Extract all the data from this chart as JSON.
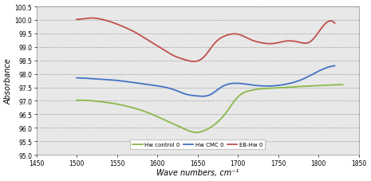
{
  "title": "",
  "xlabel": "Wave numbers, cm⁻¹",
  "ylabel": "Absorbance",
  "xlim": [
    1450,
    1850
  ],
  "ylim": [
    95,
    100.5
  ],
  "yticks": [
    95,
    95.5,
    96,
    96.5,
    97,
    97.5,
    98,
    98.5,
    99,
    99.5,
    100,
    100.5
  ],
  "xticks": [
    1450,
    1500,
    1550,
    1600,
    1650,
    1700,
    1750,
    1800,
    1850
  ],
  "bg_color": "#e8e8e8",
  "series": [
    {
      "label": "Hw control 0",
      "color": "#8ab84a",
      "x": [
        1500,
        1510,
        1520,
        1535,
        1550,
        1565,
        1580,
        1595,
        1610,
        1625,
        1640,
        1650,
        1660,
        1670,
        1685,
        1700,
        1715,
        1730,
        1750,
        1770,
        1790,
        1810,
        1830
      ],
      "y": [
        97.02,
        97.02,
        97.0,
        96.95,
        96.88,
        96.78,
        96.65,
        96.48,
        96.28,
        96.08,
        95.88,
        95.83,
        95.92,
        96.1,
        96.55,
        97.15,
        97.38,
        97.45,
        97.48,
        97.52,
        97.55,
        97.58,
        97.6
      ]
    },
    {
      "label": "Hw CMC 0",
      "color": "#4472c4",
      "x": [
        1500,
        1515,
        1530,
        1545,
        1560,
        1575,
        1590,
        1605,
        1620,
        1635,
        1650,
        1665,
        1680,
        1700,
        1720,
        1740,
        1760,
        1780,
        1800,
        1820
      ],
      "y": [
        97.85,
        97.83,
        97.8,
        97.77,
        97.72,
        97.66,
        97.6,
        97.53,
        97.42,
        97.25,
        97.18,
        97.22,
        97.52,
        97.65,
        97.58,
        97.55,
        97.62,
        97.8,
        98.1,
        98.3
      ]
    },
    {
      "label": "EB-Hw 0",
      "color": "#c0504d",
      "x": [
        1500,
        1510,
        1520,
        1530,
        1545,
        1560,
        1575,
        1590,
        1605,
        1620,
        1635,
        1650,
        1660,
        1670,
        1685,
        1700,
        1715,
        1730,
        1745,
        1760,
        1775,
        1790,
        1805,
        1820
      ],
      "y": [
        100.02,
        100.05,
        100.07,
        100.03,
        99.9,
        99.72,
        99.5,
        99.22,
        98.95,
        98.68,
        98.52,
        98.48,
        98.7,
        99.1,
        99.42,
        99.47,
        99.28,
        99.15,
        99.13,
        99.22,
        99.18,
        99.2,
        99.75,
        99.88
      ]
    }
  ],
  "linewidth": 1.3,
  "figsize": [
    4.65,
    2.28
  ],
  "dpi": 100
}
